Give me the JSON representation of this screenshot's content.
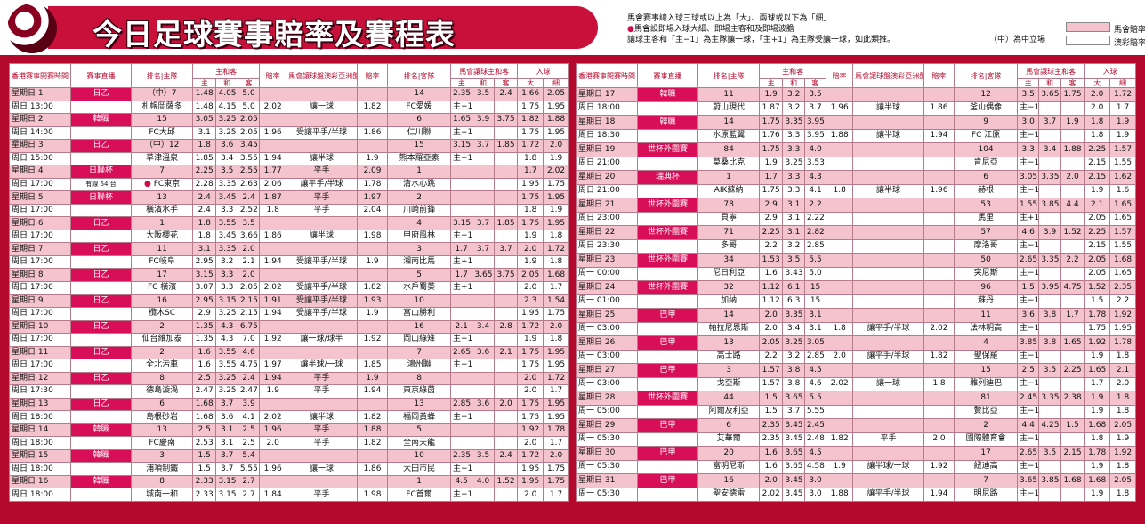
{
  "title": "今日足球賽事賠率及賽程表",
  "notes": {
    "line1": "馬會賽事總入球三球或以上為「大」、兩球或以下為「細」",
    "line2": "馬會設即場入球大細、即場主客和及即場波膽",
    "line3": "讓球主客和「主−1」為主隊讓一球，「主+1」為主隊受讓一球，如此類推。",
    "line4": "（中）為中立場"
  },
  "legend": {
    "hkjc": "馬會賠率",
    "macau": "澳彩賠率",
    "hkjc_color": "#f5c3cd",
    "macau_color": "#ffffff"
  },
  "colors": {
    "brand": "#b4082c",
    "highlight": "#d80e58"
  },
  "headers": {
    "time": "香港賽事開賽時間",
    "comp": "賽事直播",
    "home": "排名|主隊",
    "hda": "主和客",
    "h": "主",
    "d": "和",
    "a": "客",
    "odds": "賠率",
    "hcp": "馬會讓球盤澳彩亞洲盤",
    "odds2": "賠率",
    "away": "排名|客隊",
    "hcphda": "馬會讓球主和客",
    "goals": "入球",
    "big": "大",
    "small": "細"
  },
  "left": [
    {
      "day": "星期日 1",
      "time": "周日 13:00",
      "comp": "日乙",
      "hn": "（中）7",
      "hteam": "札幌岡薩多",
      "an": "14",
      "ateam": "FC愛媛",
      "r1": [
        "1.48",
        "4.05",
        "5.0",
        "",
        "",
        "",
        "2.35",
        "3.5",
        "2.4",
        "1.66",
        "2.05"
      ],
      "r2": [
        "1.48",
        "4.15",
        "5.0",
        "2.02",
        "讓一球",
        "1.82",
        "主−1",
        "",
        "",
        "1.75",
        "1.95"
      ]
    },
    {
      "day": "星期日 2",
      "time": "周日 14:00",
      "comp": "韓職",
      "hn": "15",
      "hteam": "FC大邱",
      "an": "6",
      "ateam": "仁川聯",
      "r1": [
        "3.05",
        "3.25",
        "2.05",
        "",
        "",
        "",
        "1.65",
        "3.9",
        "3.75",
        "1.82",
        "1.88"
      ],
      "r2": [
        "3.1",
        "3.25",
        "2.05",
        "1.96",
        "受讓平手/半球",
        "1.86",
        "主−1",
        "",
        "",
        "1.75",
        "1.95"
      ]
    },
    {
      "day": "星期日 3",
      "time": "周日 15:00",
      "comp": "日乙",
      "hn": "（中）12",
      "hteam": "草津溫泉",
      "an": "15",
      "ateam": "熊本羅亞素",
      "r1": [
        "1.8",
        "3.6",
        "3.45",
        "",
        "",
        "",
        "3.15",
        "3.7",
        "1.85",
        "1.72",
        "2.0"
      ],
      "r2": [
        "1.85",
        "3.4",
        "3.55",
        "1.94",
        "讓半球",
        "1.9",
        "主−1",
        "",
        "",
        "1.8",
        "1.9"
      ]
    },
    {
      "day": "星期日 4",
      "time": "周日 17:00",
      "comp": "日聯杯",
      "hn": "7",
      "hteam": "FC東京",
      "note": "有線 64 台",
      "an": "1",
      "ateam": "清水心跳",
      "r1": [
        "2.25",
        "3.5",
        "2.55",
        "1.77",
        "平手",
        "2.09",
        "",
        "",
        "",
        "1.7",
        "2.02"
      ],
      "r2": [
        "2.28",
        "3.35",
        "2.63",
        "2.06",
        "讓平手/半球",
        "1.78",
        "",
        "",
        "",
        "1.95",
        "1.75"
      ]
    },
    {
      "day": "星期日 5",
      "time": "周日 17:00",
      "comp": "日聯杯",
      "hn": "13",
      "hteam": "橫濱水手",
      "an": "2",
      "ateam": "川崎前鋒",
      "r1": [
        "2.4",
        "3.45",
        "2.4",
        "1.87",
        "平手",
        "1.97",
        "",
        "",
        "",
        "1.75",
        "1.95"
      ],
      "r2": [
        "2.4",
        "3.3",
        "2.52",
        "1.8",
        "平手",
        "2.04",
        "",
        "",
        "",
        "1.8",
        "1.9"
      ]
    },
    {
      "day": "星期日 6",
      "time": "周日 17:00",
      "comp": "日乙",
      "hn": "1",
      "hteam": "大阪櫻花",
      "an": "4",
      "ateam": "甲府風林",
      "r1": [
        "1.8",
        "3.55",
        "3.5",
        "",
        "",
        "",
        "3.15",
        "3.7",
        "1.85",
        "1.75",
        "1.95"
      ],
      "r2": [
        "1.8",
        "3.45",
        "3.66",
        "1.86",
        "讓半球",
        "1.98",
        "主−1",
        "",
        "",
        "1.9",
        "1.8"
      ]
    },
    {
      "day": "星期日 7",
      "time": "周日 17:00",
      "comp": "日乙",
      "hn": "11",
      "hteam": "FC岐阜",
      "an": "3",
      "ateam": "湘南比馬",
      "r1": [
        "3.1",
        "3.35",
        "2.0",
        "",
        "",
        "",
        "1.7",
        "3.7",
        "3.7",
        "2.0",
        "1.72"
      ],
      "r2": [
        "2.95",
        "3.2",
        "2.1",
        "1.94",
        "受讓平手/半球",
        "1.9",
        "主+1",
        "",
        "",
        "1.9",
        "1.8"
      ]
    },
    {
      "day": "星期日 8",
      "time": "周日 17:00",
      "comp": "日乙",
      "hn": "17",
      "hteam": "FC 橫濱",
      "an": "5",
      "ateam": "水戶蜀葵",
      "r1": [
        "3.15",
        "3.3",
        "2.0",
        "",
        "",
        "",
        "1.7",
        "3.65",
        "3.75",
        "2.05",
        "1.68"
      ],
      "r2": [
        "3.07",
        "3.3",
        "2.05",
        "2.02",
        "受讓平手/半球",
        "1.82",
        "主+1",
        "",
        "",
        "2.0",
        "1.7"
      ]
    },
    {
      "day": "星期日 9",
      "time": "周日 17:00",
      "comp": "日乙",
      "hn": "16",
      "hteam": "欖木SC",
      "an": "10",
      "ateam": "富山勝利",
      "r1": [
        "2.95",
        "3.15",
        "2.15",
        "1.91",
        "受讓平手/半球",
        "1.93",
        "",
        "",
        "",
        "2.3",
        "1.54"
      ],
      "r2": [
        "2.9",
        "3.25",
        "2.15",
        "1.94",
        "受讓平手/半球",
        "1.9",
        "",
        "",
        "",
        "1.95",
        "1.75"
      ]
    },
    {
      "day": "星期日 10",
      "time": "周日 17:00",
      "comp": "日乙",
      "hn": "2",
      "hteam": "仙台維加泰",
      "an": "16",
      "ateam": "岡山綠雉",
      "r1": [
        "1.35",
        "4.3",
        "6.75",
        "",
        "",
        "",
        "2.1",
        "3.4",
        "2.8",
        "1.72",
        "2.0"
      ],
      "r2": [
        "1.35",
        "4.3",
        "7.0",
        "1.92",
        "讓一球/球半",
        "1.92",
        "主−1",
        "",
        "",
        "1.9",
        "1.8"
      ]
    },
    {
      "day": "星期日 11",
      "time": "周日 17:00",
      "comp": "日乙",
      "hn": "2",
      "hteam": "全北污車",
      "an": "7",
      "ateam": "鴻州聯",
      "r1": [
        "1.6",
        "3.55",
        "4.6",
        "",
        "",
        "",
        "2.65",
        "3.6",
        "2.1",
        "1.75",
        "1.95"
      ],
      "r2": [
        "1.6",
        "3.55",
        "4.75",
        "1.97",
        "讓半球/一球",
        "1.85",
        "主−1",
        "",
        "",
        "1.75",
        "1.95"
      ]
    },
    {
      "day": "星期日 12",
      "time": "周日 17:30",
      "comp": "日乙",
      "hn": "8",
      "hteam": "德島漩渦",
      "an": "8",
      "ateam": "東京綠茵",
      "r1": [
        "2.5",
        "3.25",
        "2.4",
        "1.94",
        "平手",
        "1.9",
        "",
        "",
        "",
        "2.0",
        "1.72"
      ],
      "r2": [
        "2.47",
        "3.25",
        "2.47",
        "1.9",
        "平手",
        "1.94",
        "",
        "",
        "",
        "2.0",
        "1.7"
      ]
    },
    {
      "day": "星期日 13",
      "time": "周日 18:00",
      "comp": "日乙",
      "hn": "6",
      "hteam": "島根砂岩",
      "an": "13",
      "ateam": "福岡黃蜂",
      "r1": [
        "1.68",
        "3.7",
        "3.9",
        "",
        "",
        "",
        "2.85",
        "3.6",
        "2.0",
        "1.75",
        "1.95"
      ],
      "r2": [
        "1.68",
        "3.6",
        "4.1",
        "2.02",
        "讓半球",
        "1.82",
        "主−1",
        "",
        "",
        "1.75",
        "1.95"
      ]
    },
    {
      "day": "星期日 14",
      "time": "周日 18:00",
      "comp": "韓職",
      "hn": "13",
      "hteam": "FC慶南",
      "an": "5",
      "ateam": "全南天龍",
      "r1": [
        "2.5",
        "3.1",
        "2.5",
        "1.96",
        "平手",
        "1.88",
        "",
        "",
        "",
        "1.92",
        "1.78"
      ],
      "r2": [
        "2.53",
        "3.1",
        "2.5",
        "2.0",
        "平手",
        "1.82",
        "",
        "",
        "",
        "2.0",
        "1.7"
      ]
    },
    {
      "day": "星期日 15",
      "time": "周日 18:00",
      "comp": "韓職",
      "hn": "3",
      "hteam": "浦項制鐵",
      "an": "10",
      "ateam": "大田市民",
      "r1": [
        "1.5",
        "3.7",
        "5.4",
        "",
        "",
        "",
        "2.35",
        "3.5",
        "2.4",
        "1.72",
        "2.0"
      ],
      "r2": [
        "1.5",
        "3.7",
        "5.55",
        "1.96",
        "讓一球",
        "1.86",
        "主−1",
        "",
        "",
        "1.95",
        "1.75"
      ]
    },
    {
      "day": "星期日 16",
      "time": "周日 18:00",
      "comp": "韓職",
      "hn": "8",
      "hteam": "城南一和",
      "an": "1",
      "ateam": "FC首爾",
      "r1": [
        "2.33",
        "3.15",
        "2.7",
        "",
        "",
        "",
        "4.5",
        "4.0",
        "1.52",
        "1.95",
        "1.75"
      ],
      "r2": [
        "2.33",
        "3.15",
        "2.7",
        "1.84",
        "平手",
        "1.98",
        "主−1",
        "",
        "",
        "2.0",
        "1.7"
      ]
    }
  ],
  "right": [
    {
      "day": "星期日 17",
      "time": "周日 18:00",
      "comp": "韓職",
      "hn": "11",
      "hteam": "蔚山現代",
      "an": "12",
      "ateam": "釜山偶像",
      "r1": [
        "1.9",
        "3.2",
        "3.5",
        "",
        "",
        "",
        "3.5",
        "3.65",
        "1.75",
        "2.0",
        "1.72"
      ],
      "r2": [
        "1.87",
        "3.2",
        "3.7",
        "1.96",
        "讓半球",
        "1.86",
        "主−1",
        "",
        "",
        "2.0",
        "1.7"
      ]
    },
    {
      "day": "星期日 18",
      "time": "周日 18:30",
      "comp": "韓職",
      "hn": "14",
      "hteam": "水原藍翼",
      "an": "9",
      "ateam": "FC 江原",
      "r1": [
        "1.75",
        "3.35",
        "3.95",
        "",
        "",
        "",
        "3.0",
        "3.7",
        "1.9",
        "1.8",
        "1.9"
      ],
      "r2": [
        "1.76",
        "3.3",
        "3.95",
        "1.88",
        "讓半球",
        "1.94",
        "主−1",
        "",
        "",
        "1.8",
        "1.9"
      ]
    },
    {
      "day": "星期日 19",
      "time": "周日 21:00",
      "comp": "世杯外圍賽",
      "hn": "84",
      "hteam": "莫桑比克",
      "an": "104",
      "ateam": "肯尼亞",
      "r1": [
        "1.75",
        "3.3",
        "4.0",
        "",
        "",
        "",
        "3.3",
        "3.4",
        "1.88",
        "2.25",
        "1.57"
      ],
      "r2": [
        "1.9",
        "3.25",
        "3.53",
        "",
        "",
        "",
        "主−1",
        "",
        "",
        "2.15",
        "1.55"
      ]
    },
    {
      "day": "星期日 20",
      "time": "周日 21:00",
      "comp": "瑞典杯",
      "hn": "1",
      "hteam": "AIK蘇納",
      "an": "6",
      "ateam": "赫根",
      "r1": [
        "1.7",
        "3.3",
        "4.3",
        "",
        "",
        "",
        "3.05",
        "3.35",
        "2.0",
        "2.15",
        "1.62"
      ],
      "r2": [
        "1.75",
        "3.3",
        "4.1",
        "1.8",
        "讓半球",
        "1.96",
        "主−1",
        "",
        "",
        "1.9",
        "1.6"
      ]
    },
    {
      "day": "星期日 21",
      "time": "周日 23:00",
      "comp": "世杯外圍賽",
      "hn": "78",
      "hteam": "貝寧",
      "an": "53",
      "ateam": "馬里",
      "r1": [
        "2.9",
        "3.1",
        "2.2",
        "",
        "",
        "",
        "1.55",
        "3.85",
        "4.4",
        "2.1",
        "1.65"
      ],
      "r2": [
        "2.9",
        "3.1",
        "2.22",
        "",
        "",
        "",
        "主+1",
        "",
        "",
        "2.05",
        "1.65"
      ]
    },
    {
      "day": "星期日 22",
      "time": "周日 23:30",
      "comp": "世杯外圍賽",
      "hn": "71",
      "hteam": "多哥",
      "an": "57",
      "ateam": "摩洛哥",
      "r1": [
        "2.25",
        "3.1",
        "2.82",
        "",
        "",
        "",
        "4.6",
        "3.9",
        "1.52",
        "2.25",
        "1.57"
      ],
      "r2": [
        "2.2",
        "3.2",
        "2.85",
        "",
        "",
        "",
        "主−1",
        "",
        "",
        "2.15",
        "1.55"
      ]
    },
    {
      "day": "星期日 23",
      "time": "周一 00:00",
      "comp": "世杯外圍賽",
      "hn": "34",
      "hteam": "尼日利亞",
      "an": "50",
      "ateam": "突尼斯",
      "r1": [
        "1.53",
        "3.5",
        "5.5",
        "",
        "",
        "",
        "2.65",
        "3.35",
        "2.2",
        "2.05",
        "1.68"
      ],
      "r2": [
        "1.6",
        "3.43",
        "5.0",
        "",
        "",
        "",
        "主−1",
        "",
        "",
        "2.05",
        "1.65"
      ]
    },
    {
      "day": "星期日 24",
      "time": "周一 01:00",
      "comp": "世杯外圍賽",
      "hn": "32",
      "hteam": "加納",
      "an": "96",
      "ateam": "蘇丹",
      "r1": [
        "1.12",
        "6.1",
        "15",
        "",
        "",
        "",
        "1.5",
        "3.95",
        "4.75",
        "1.52",
        "2.35"
      ],
      "r2": [
        "1.12",
        "6.3",
        "15",
        "",
        "",
        "",
        "主−1",
        "",
        "",
        "1.5",
        "2.2"
      ]
    },
    {
      "day": "星期日 25",
      "time": "周一 03:00",
      "comp": "巴甲",
      "hn": "14",
      "hteam": "帕拉尼恩斯",
      "an": "11",
      "ateam": "法林明高",
      "r1": [
        "2.0",
        "3.35",
        "3.1",
        "",
        "",
        "",
        "3.6",
        "3.8",
        "1.7",
        "1.78",
        "1.92"
      ],
      "r2": [
        "2.0",
        "3.4",
        "3.1",
        "1.8",
        "讓平手/半球",
        "2.02",
        "主−1",
        "",
        "",
        "1.75",
        "1.95"
      ]
    },
    {
      "day": "星期日 26",
      "time": "周一 03:00",
      "comp": "巴甲",
      "hn": "13",
      "hteam": "高士路",
      "an": "4",
      "ateam": "聖保羅",
      "r1": [
        "2.05",
        "3.25",
        "3.05",
        "",
        "",
        "",
        "3.85",
        "3.8",
        "1.65",
        "1.92",
        "1.78"
      ],
      "r2": [
        "2.2",
        "3.2",
        "2.85",
        "2.0",
        "讓平手/半球",
        "1.82",
        "主−1",
        "",
        "",
        "1.9",
        "1.8"
      ]
    },
    {
      "day": "星期日 27",
      "time": "周一 03:00",
      "comp": "巴甲",
      "hn": "3",
      "hteam": "戈亞斯",
      "an": "15",
      "ateam": "雅列迪巴",
      "r1": [
        "1.57",
        "3.8",
        "4.5",
        "",
        "",
        "",
        "2.5",
        "3.5",
        "2.25",
        "1.65",
        "2.1"
      ],
      "r2": [
        "1.57",
        "3.8",
        "4.6",
        "2.02",
        "讓一球",
        "1.8",
        "主−1",
        "",
        "",
        "1.7",
        "2.0"
      ]
    },
    {
      "day": "星期日 28",
      "time": "周一 05:00",
      "comp": "世杯外圍賽",
      "hn": "44",
      "hteam": "阿爾及利亞",
      "an": "81",
      "ateam": "贊比亞",
      "r1": [
        "1.5",
        "3.65",
        "5.5",
        "",
        "",
        "",
        "2.45",
        "3.35",
        "2.38",
        "1.9",
        "1.8"
      ],
      "r2": [
        "1.5",
        "3.7",
        "5.55",
        "",
        "",
        "",
        "主−1",
        "",
        "",
        "1.9",
        "1.8"
      ]
    },
    {
      "day": "星期日 29",
      "time": "周一 05:30",
      "comp": "巴甲",
      "hn": "6",
      "hteam": "艾華爾",
      "an": "2",
      "ateam": "國際體育會",
      "r1": [
        "2.35",
        "3.45",
        "2.45",
        "",
        "",
        "",
        "4.4",
        "4.25",
        "1.5",
        "1.68",
        "2.05"
      ],
      "r2": [
        "2.35",
        "3.45",
        "2.48",
        "1.82",
        "平手",
        "2.0",
        "主−1",
        "",
        "",
        "1.8",
        "1.9"
      ]
    },
    {
      "day": "星期日 30",
      "time": "周一 05:30",
      "comp": "巴甲",
      "hn": "20",
      "hteam": "富明尼斯",
      "an": "17",
      "ateam": "紐迪高",
      "r1": [
        "1.6",
        "3.65",
        "4.5",
        "",
        "",
        "",
        "2.65",
        "3.5",
        "2.15",
        "1.78",
        "1.92"
      ],
      "r2": [
        "1.6",
        "3.65",
        "4.58",
        "1.9",
        "讓半球/一球",
        "1.92",
        "主−1",
        "",
        "",
        "1.9",
        "1.8"
      ]
    },
    {
      "day": "星期日 31",
      "time": "周一 05:30",
      "comp": "巴甲",
      "hn": "16",
      "hteam": "聖安德雷",
      "an": "7",
      "ateam": "明尼路",
      "r1": [
        "2.0",
        "3.45",
        "3.0",
        "",
        "",
        "",
        "3.65",
        "3.85",
        "1.68",
        "1.68",
        "2.05"
      ],
      "r2": [
        "2.02",
        "3.45",
        "3.0",
        "1.88",
        "讓平手/半球",
        "1.94",
        "主−1",
        "",
        "",
        "1.9",
        "1.8"
      ]
    }
  ]
}
